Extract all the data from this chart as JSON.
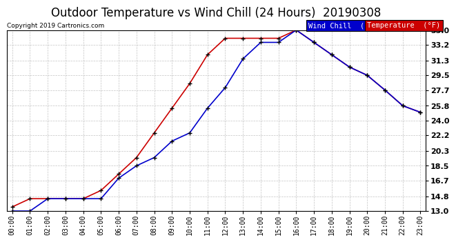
{
  "title": "Outdoor Temperature vs Wind Chill (24 Hours)  20190308",
  "copyright": "Copyright 2019 Cartronics.com",
  "background_color": "#ffffff",
  "grid_color": "#aaaaaa",
  "hours": [
    0,
    1,
    2,
    3,
    4,
    5,
    6,
    7,
    8,
    9,
    10,
    11,
    12,
    13,
    14,
    15,
    16,
    17,
    18,
    19,
    20,
    21,
    22,
    23
  ],
  "temperature": [
    13.5,
    14.5,
    14.5,
    14.5,
    14.5,
    15.5,
    17.5,
    19.5,
    22.5,
    25.5,
    28.5,
    32.0,
    34.0,
    34.0,
    34.0,
    34.0,
    35.0,
    33.5,
    32.0,
    30.5,
    29.5,
    27.7,
    25.8,
    25.0
  ],
  "wind_chill": [
    13.0,
    13.0,
    14.5,
    14.5,
    14.5,
    14.5,
    17.0,
    18.5,
    19.5,
    21.5,
    22.5,
    25.5,
    28.0,
    31.5,
    33.5,
    33.5,
    35.0,
    33.5,
    32.0,
    30.5,
    29.5,
    27.7,
    25.8,
    25.0
  ],
  "temp_color": "#cc0000",
  "wind_chill_color": "#0000cc",
  "ylim_min": 13.0,
  "ylim_max": 35.0,
  "yticks": [
    13.0,
    14.8,
    16.7,
    18.5,
    20.3,
    22.2,
    24.0,
    25.8,
    27.7,
    29.5,
    31.3,
    33.2,
    35.0
  ],
  "marker": "+",
  "marker_color": "#000000",
  "marker_size": 5,
  "line_width": 1.2,
  "title_fontsize": 12,
  "tick_fontsize": 7,
  "legend_wind_chill_bg": "#0000cc",
  "legend_temp_bg": "#cc0000",
  "legend_text_color": "#ffffff",
  "legend_wind_chill_label": "Wind Chill  (°F)",
  "legend_temp_label": "Temperature  (°F)"
}
